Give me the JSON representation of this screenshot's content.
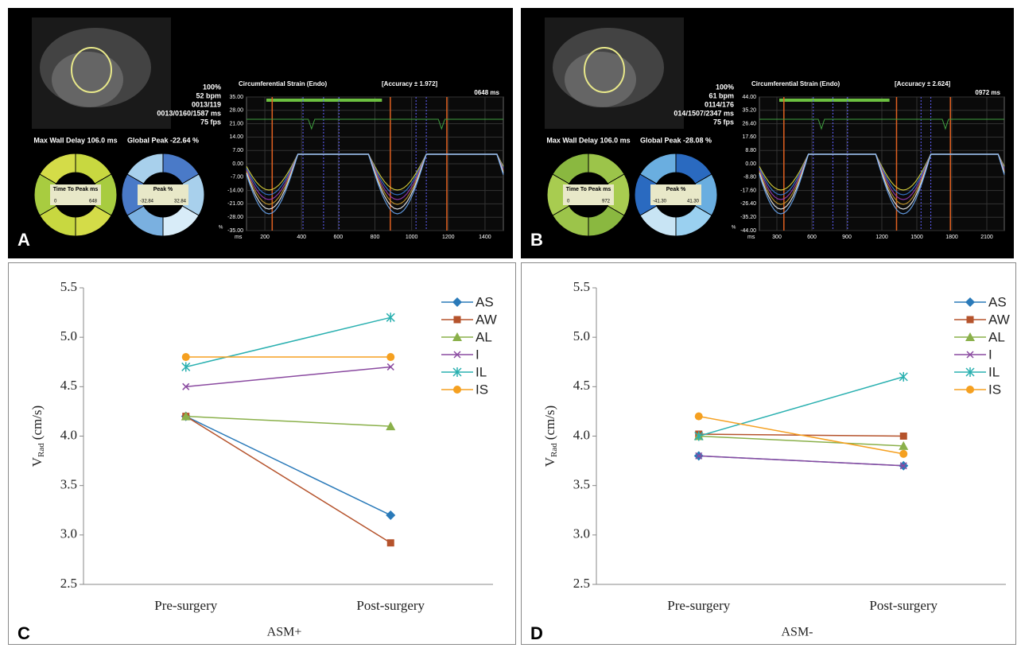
{
  "screens": [
    {
      "label": "A",
      "info": [
        "100%",
        "52 bpm",
        "0013/119",
        "0013/0160/1587 ms",
        "75 fps"
      ],
      "max_wall": "Max Wall Delay 106.0 ms",
      "global_peak": "Global Peak -22.64 %",
      "ttp_title": "Time To Peak ms",
      "ttp_range": [
        "0",
        "648"
      ],
      "peak_title": "Peak %",
      "peak_range": [
        "-32.84",
        "32.84"
      ],
      "strain_title": "Circumferential Strain (Endo)",
      "accuracy": "[Accuracy ± 1.972]",
      "time": "0648 ms",
      "yticks": [
        "35.00",
        "28.00",
        "21.00",
        "14.00",
        "7.00",
        "0.00",
        "-7.00",
        "-14.00",
        "-21.00",
        "-28.00",
        "-35.00"
      ],
      "xticks": [
        "200",
        "400",
        "600",
        "800",
        "1000",
        "1200",
        "1400"
      ],
      "xunit": "ms",
      "yunit": "%"
    },
    {
      "label": "B",
      "info": [
        "100%",
        "61 bpm",
        "0114/176",
        "014/1507/2347 ms",
        "75 fps"
      ],
      "max_wall": "Max Wall Delay 106.0 ms",
      "global_peak": "Global Peak -28.08 %",
      "ttp_title": "Time To Peak ms",
      "ttp_range": [
        "0",
        "972"
      ],
      "peak_title": "Peak %",
      "peak_range": [
        "-41.30",
        "41.30"
      ],
      "strain_title": "Circumferential Strain (Endo)",
      "accuracy": "[Accuracy ± 2.624]",
      "time": "0972 ms",
      "yticks": [
        "44.00",
        "35.20",
        "26.40",
        "17.60",
        "8.80",
        "0.00",
        "-8.80",
        "-17.60",
        "-26.40",
        "-35.20",
        "-44.00"
      ],
      "xticks": [
        "300",
        "600",
        "900",
        "1200",
        "1500",
        "1800",
        "2100"
      ],
      "xunit": "ms",
      "yunit": "%"
    }
  ],
  "chart_data": [
    {
      "type": "line",
      "panel": "C",
      "xlabel": "ASM+",
      "ylabel": "V",
      "ylabel_sub": "Rad",
      "ylabel_unit": "(cm/s)",
      "categories": [
        "Pre-surgery",
        "Post-surgery"
      ],
      "ylim": [
        2.5,
        5.5
      ],
      "yticks": [
        2.5,
        {
          "value": 3,
          "label": "3.0"
        },
        3.5,
        {
          "value": 4,
          "label": "4.0"
        },
        4.5,
        {
          "value": 5,
          "label": "5.0"
        },
        5.5
      ],
      "series": [
        {
          "name": "AS",
          "color": "#2a7ab9",
          "marker": "diamond",
          "values": [
            4.2,
            3.2
          ]
        },
        {
          "name": "AW",
          "color": "#b5532c",
          "marker": "square",
          "values": [
            4.2,
            2.92
          ]
        },
        {
          "name": "AL",
          "color": "#8ab04a",
          "marker": "triangle",
          "values": [
            4.2,
            4.1
          ]
        },
        {
          "name": "I",
          "color": "#8a4aa0",
          "marker": "x",
          "values": [
            4.5,
            4.7
          ]
        },
        {
          "name": "IL",
          "color": "#2ab0b0",
          "marker": "asterisk",
          "values": [
            4.7,
            5.2
          ]
        },
        {
          "name": "IS",
          "color": "#f5a020",
          "marker": "circle",
          "values": [
            4.8,
            4.8
          ]
        }
      ]
    },
    {
      "type": "line",
      "panel": "D",
      "xlabel": "ASM-",
      "ylabel": "V",
      "ylabel_sub": "Rad",
      "ylabel_unit": "(cm/s)",
      "categories": [
        "Pre-surgery",
        "Post-surgery"
      ],
      "ylim": [
        2.5,
        5.5
      ],
      "yticks": [
        2.5,
        {
          "value": 3,
          "label": "3.0"
        },
        3.5,
        {
          "value": 4,
          "label": "4.0"
        },
        4.5,
        {
          "value": 5,
          "label": "5.0"
        },
        5.5
      ],
      "series": [
        {
          "name": "AS",
          "color": "#2a7ab9",
          "marker": "diamond",
          "values": [
            3.8,
            3.7
          ]
        },
        {
          "name": "AW",
          "color": "#b5532c",
          "marker": "square",
          "values": [
            4.02,
            4.0
          ]
        },
        {
          "name": "AL",
          "color": "#8ab04a",
          "marker": "triangle",
          "values": [
            4.0,
            3.9
          ]
        },
        {
          "name": "I",
          "color": "#8a4aa0",
          "marker": "x",
          "values": [
            3.8,
            3.7
          ]
        },
        {
          "name": "IL",
          "color": "#2ab0b0",
          "marker": "asterisk",
          "values": [
            4.0,
            4.6
          ]
        },
        {
          "name": "IS",
          "color": "#f5a020",
          "marker": "circle",
          "values": [
            4.2,
            3.82
          ]
        }
      ]
    }
  ]
}
